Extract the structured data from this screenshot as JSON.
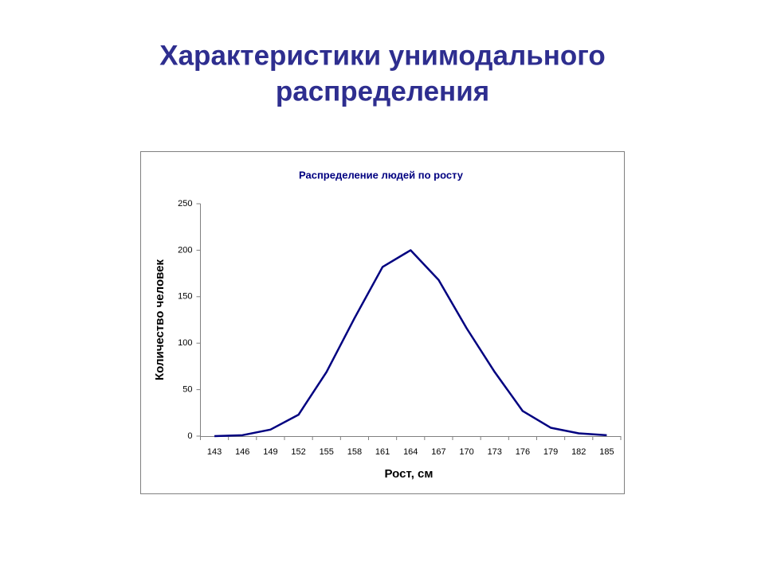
{
  "slide_title_lines": [
    "Характеристики унимодального",
    "распределения"
  ],
  "chart_data": {
    "type": "line",
    "title": "Распределение людей по росту",
    "x_label": "Рост, см",
    "y_label": "Количество человек",
    "categories": [
      "143",
      "146",
      "149",
      "152",
      "155",
      "158",
      "161",
      "164",
      "167",
      "170",
      "173",
      "176",
      "179",
      "182",
      "185"
    ],
    "values": [
      0,
      1,
      7,
      23,
      69,
      127,
      182,
      200,
      168,
      116,
      69,
      27,
      9,
      3,
      1
    ],
    "color": "#000080",
    "ylim": [
      0,
      250
    ],
    "yticks": [
      0,
      50,
      100,
      150,
      200,
      250
    ]
  }
}
